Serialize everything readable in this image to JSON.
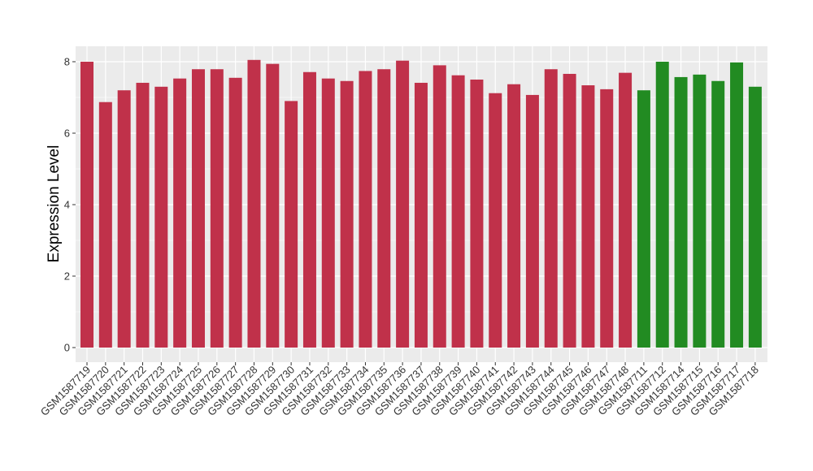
{
  "chart_data": {
    "type": "bar",
    "title": "",
    "xlabel": "",
    "ylabel": "Expression Level",
    "ylim": [
      0,
      8.3
    ],
    "yticks": [
      0,
      2,
      4,
      6,
      8
    ],
    "grid": true,
    "colors": {
      "group1": "#c0314a",
      "group2": "#228b22",
      "panel": "#ebebeb",
      "grid": "#ffffff"
    },
    "categories": [
      "GSM1587719",
      "GSM1587720",
      "GSM1587721",
      "GSM1587722",
      "GSM1587723",
      "GSM1587724",
      "GSM1587725",
      "GSM1587726",
      "GSM1587727",
      "GSM1587728",
      "GSM1587729",
      "GSM1587730",
      "GSM1587731",
      "GSM1587732",
      "GSM1587733",
      "GSM1587734",
      "GSM1587735",
      "GSM1587736",
      "GSM1587737",
      "GSM1587738",
      "GSM1587739",
      "GSM1587740",
      "GSM1587741",
      "GSM1587742",
      "GSM1587743",
      "GSM1587744",
      "GSM1587745",
      "GSM1587746",
      "GSM1587747",
      "GSM1587748",
      "GSM1587711",
      "GSM1587712",
      "GSM1587714",
      "GSM1587715",
      "GSM1587716",
      "GSM1587717",
      "GSM1587718"
    ],
    "values": [
      8.0,
      6.87,
      7.2,
      7.41,
      7.3,
      7.53,
      7.79,
      7.79,
      7.55,
      8.05,
      7.94,
      6.9,
      7.71,
      7.53,
      7.46,
      7.74,
      7.79,
      8.03,
      7.41,
      7.9,
      7.62,
      7.5,
      7.12,
      7.37,
      7.07,
      7.79,
      7.66,
      7.34,
      7.23,
      7.69,
      7.2,
      8.0,
      7.57,
      7.64,
      7.46,
      7.98,
      7.3
    ],
    "group": [
      1,
      1,
      1,
      1,
      1,
      1,
      1,
      1,
      1,
      1,
      1,
      1,
      1,
      1,
      1,
      1,
      1,
      1,
      1,
      1,
      1,
      1,
      1,
      1,
      1,
      1,
      1,
      1,
      1,
      1,
      2,
      2,
      2,
      2,
      2,
      2,
      2
    ]
  }
}
